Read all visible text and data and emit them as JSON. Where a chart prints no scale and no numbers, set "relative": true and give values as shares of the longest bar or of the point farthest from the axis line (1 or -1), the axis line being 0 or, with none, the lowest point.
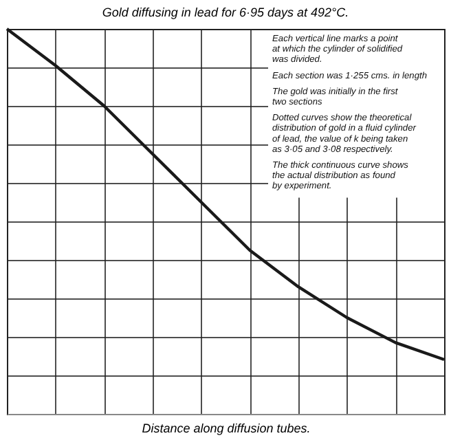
{
  "chart_data": {
    "type": "line",
    "title": "Gold diffusing in lead for 6·95 days at 492°C.",
    "xlabel": "Distance along diffusion tubes.",
    "categories": [
      null,
      null,
      null,
      null,
      null,
      null,
      null,
      null,
      null,
      null
    ],
    "relative": true,
    "series": [
      {
        "color": "#1a1a1a",
        "values": [
          1,
          0.905,
          0.8,
          0.675,
          0.55,
          0.425,
          0.33,
          0.25,
          0.185,
          0.141
        ]
      }
    ],
    "grid": true,
    "annotations": [
      "Each vertical line marks a point\nat which the cylinder of solidified\nwas divided.",
      "Each section was 1·255 cms. in length",
      "The gold was initially in the first\ntwo sections",
      "Dotted curves show the theoretical\ndistribution of gold in a fluid cylinder\nof lead, the value of k being taken\nas 3·05 and 3·08 respectively.",
      "The thick continuous curve shows\nthe actual distribution as found\nby experiment."
    ]
  }
}
